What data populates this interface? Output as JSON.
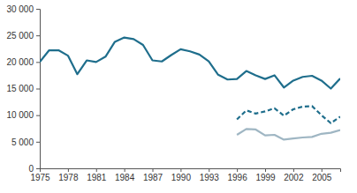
{
  "chart_data": {
    "type": "line",
    "x": [
      1975,
      1976,
      1977,
      1978,
      1979,
      1980,
      1981,
      1982,
      1983,
      1984,
      1985,
      1986,
      1987,
      1988,
      1989,
      1990,
      1991,
      1992,
      1993,
      1994,
      1995,
      1996,
      1997,
      1998,
      1999,
      2000,
      2001,
      2002,
      2003,
      2004,
      2005,
      2006,
      2007
    ],
    "series": [
      {
        "color": "#1f6e8c",
        "line_style": "solid",
        "values": [
          20000,
          22200,
          22200,
          21200,
          17700,
          20300,
          20000,
          21000,
          23800,
          24600,
          24300,
          23200,
          20300,
          20100,
          21300,
          22400,
          22000,
          21400,
          20100,
          17600,
          16700,
          16800,
          18300,
          17500,
          16800,
          17500,
          15200,
          16500,
          17200,
          17400,
          16500,
          15000,
          16900
        ]
      },
      {
        "color": "#1f6e8c",
        "line_style": "dashed",
        "values": [
          null,
          null,
          null,
          null,
          null,
          null,
          null,
          null,
          null,
          null,
          null,
          null,
          null,
          null,
          null,
          null,
          null,
          null,
          null,
          null,
          null,
          9200,
          10900,
          10300,
          10700,
          11300,
          9900,
          11100,
          11600,
          11700,
          10000,
          8500,
          9700
        ]
      },
      {
        "color": "#9fb6c3",
        "line_style": "solid",
        "values": [
          null,
          null,
          null,
          null,
          null,
          null,
          null,
          null,
          null,
          null,
          null,
          null,
          null,
          null,
          null,
          null,
          null,
          null,
          null,
          null,
          null,
          6300,
          7400,
          7300,
          6200,
          6300,
          5400,
          5600,
          5800,
          5900,
          6500,
          6700,
          7200
        ]
      }
    ],
    "xlim": [
      1975,
      2007
    ],
    "xticks": [
      1975,
      1978,
      1981,
      1984,
      1987,
      1990,
      1993,
      1996,
      1999,
      2002,
      2005
    ],
    "ylim": [
      0,
      30000
    ],
    "yticks": [
      0,
      {
        "value": 5000,
        "label": "5 000"
      },
      {
        "value": 10000,
        "label": "10 000"
      },
      {
        "value": 15000,
        "label": "15 000"
      },
      {
        "value": 20000,
        "label": "20 000"
      },
      {
        "value": 25000,
        "label": "25 000"
      },
      {
        "value": 30000,
        "label": "30 000"
      }
    ]
  }
}
